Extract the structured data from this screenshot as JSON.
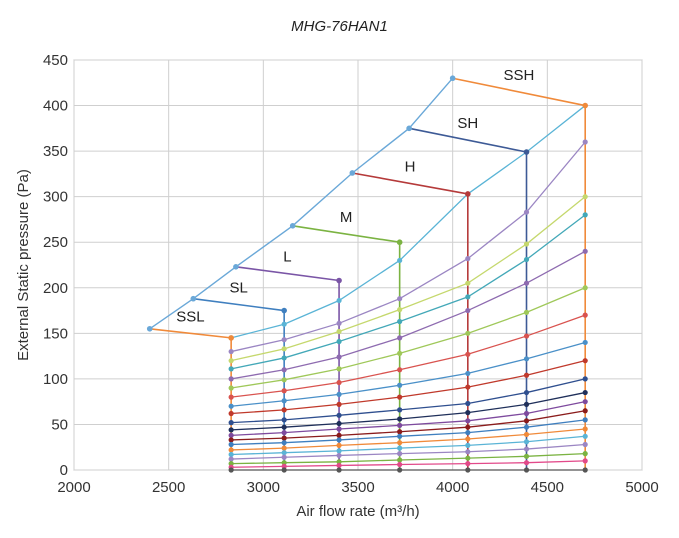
{
  "chart_data": {
    "type": "line",
    "title": "MHG-76HAN1",
    "xlabel": "Air flow rate (m³/h)",
    "ylabel": "External Static pressure (Pa)",
    "xlim": [
      2000,
      5000
    ],
    "ylim": [
      0,
      450
    ],
    "xticks": [
      "2000",
      "2500",
      "3000",
      "3500",
      "4000",
      "4500",
      "5000"
    ],
    "yticks": [
      "0",
      "50",
      "100",
      "150",
      "200",
      "250",
      "300",
      "350",
      "400",
      "450"
    ],
    "grid": true,
    "upper_envelope": [
      [
        2400,
        155
      ],
      [
        2630,
        188
      ],
      [
        2855,
        223
      ],
      [
        3155,
        268
      ],
      [
        3470,
        326
      ],
      [
        3770,
        375
      ],
      [
        4000,
        430
      ]
    ],
    "flow_columns": [
      2830,
      3110,
      3400,
      3720,
      4080,
      4390,
      4700
    ],
    "series": [
      {
        "name": "SSL",
        "color": "#f08a3a",
        "points": [
          [
            2400,
            155
          ],
          [
            2830,
            145
          ]
        ]
      },
      {
        "name": "SL",
        "color": "#3f7fbf",
        "points": [
          [
            2630,
            188
          ],
          [
            3110,
            175
          ]
        ]
      },
      {
        "name": "L",
        "color": "#7a55a6",
        "points": [
          [
            2855,
            223
          ],
          [
            3400,
            208
          ]
        ]
      },
      {
        "name": "M",
        "color": "#7bb342",
        "points": [
          [
            3155,
            268
          ],
          [
            3720,
            250
          ]
        ]
      },
      {
        "name": "H",
        "color": "#b53a3a",
        "points": [
          [
            3470,
            326
          ],
          [
            4080,
            303
          ]
        ]
      },
      {
        "name": "SH",
        "color": "#3d5a96",
        "points": [
          [
            3770,
            375
          ],
          [
            4390,
            349
          ]
        ]
      },
      {
        "name": "SSH",
        "color": "#f08a3a",
        "points": [
          [
            4000,
            430
          ],
          [
            4700,
            400
          ]
        ]
      }
    ],
    "vertical_lines": [
      {
        "x": 2830,
        "from": 0,
        "to": 145,
        "color": "#f08a3a"
      },
      {
        "x": 3110,
        "from": 0,
        "to": 175,
        "color": "#3f7fbf"
      },
      {
        "x": 3400,
        "from": 0,
        "to": 208,
        "color": "#7a55a6"
      },
      {
        "x": 3720,
        "from": 0,
        "to": 250,
        "color": "#7bb342"
      },
      {
        "x": 4080,
        "from": 0,
        "to": 303,
        "color": "#b53a3a"
      },
      {
        "x": 4390,
        "from": 0,
        "to": 349,
        "color": "#3d5a96"
      },
      {
        "x": 4700,
        "from": 0,
        "to": 400,
        "color": "#f08a3a"
      }
    ],
    "resistance_curves": [
      {
        "color": "#5ab4d6",
        "values": [
          145,
          160,
          186,
          230,
          303,
          349,
          400
        ]
      },
      {
        "color": "#9b86c3",
        "values": [
          130,
          143,
          161,
          188,
          232,
          283,
          360
        ]
      },
      {
        "color": "#c5d86d",
        "values": [
          120,
          133,
          152,
          176,
          205,
          248,
          300
        ]
      },
      {
        "color": "#43a8b8",
        "values": [
          111,
          123,
          141,
          163,
          190,
          231,
          280
        ]
      },
      {
        "color": "#8e6bb0",
        "values": [
          100,
          110,
          124,
          145,
          175,
          205,
          240
        ]
      },
      {
        "color": "#9fc859",
        "values": [
          90,
          99,
          111,
          128,
          150,
          173,
          200
        ]
      },
      {
        "color": "#d9534f",
        "values": [
          80,
          87,
          96,
          110,
          127,
          147,
          170
        ]
      },
      {
        "color": "#4a90c8",
        "values": [
          70,
          76,
          83,
          93,
          106,
          122,
          140
        ]
      },
      {
        "color": "#c0392b",
        "values": [
          62,
          66,
          72,
          80,
          91,
          104,
          120
        ]
      },
      {
        "color": "#2f4f8f",
        "values": [
          52,
          55,
          60,
          66,
          73,
          85,
          100
        ]
      },
      {
        "color": "#1f2f5a",
        "values": [
          44,
          47,
          51,
          56,
          63,
          72,
          85
        ]
      },
      {
        "color": "#7e4a9e",
        "values": [
          38,
          41,
          45,
          49,
          54,
          62,
          75
        ]
      },
      {
        "color": "#8b1c1c",
        "values": [
          33,
          35,
          38,
          42,
          47,
          54,
          65
        ]
      },
      {
        "color": "#3f7fbf",
        "values": [
          28,
          30,
          33,
          37,
          41,
          47,
          55
        ]
      },
      {
        "color": "#f08a3a",
        "values": [
          22,
          24,
          27,
          30,
          34,
          39,
          45
        ]
      },
      {
        "color": "#5ab4d6",
        "values": [
          17,
          19,
          21,
          24,
          27,
          31,
          37
        ]
      },
      {
        "color": "#9b86c3",
        "values": [
          12,
          14,
          16,
          18,
          20,
          23,
          28
        ]
      },
      {
        "color": "#7bb342",
        "values": [
          7,
          8,
          9,
          11,
          13,
          15,
          18
        ]
      },
      {
        "color": "#e24a8a",
        "values": [
          3,
          4,
          5,
          6,
          7,
          8,
          10
        ]
      },
      {
        "color": "#555555",
        "values": [
          0,
          0,
          0,
          0,
          0,
          0,
          0
        ]
      }
    ]
  }
}
